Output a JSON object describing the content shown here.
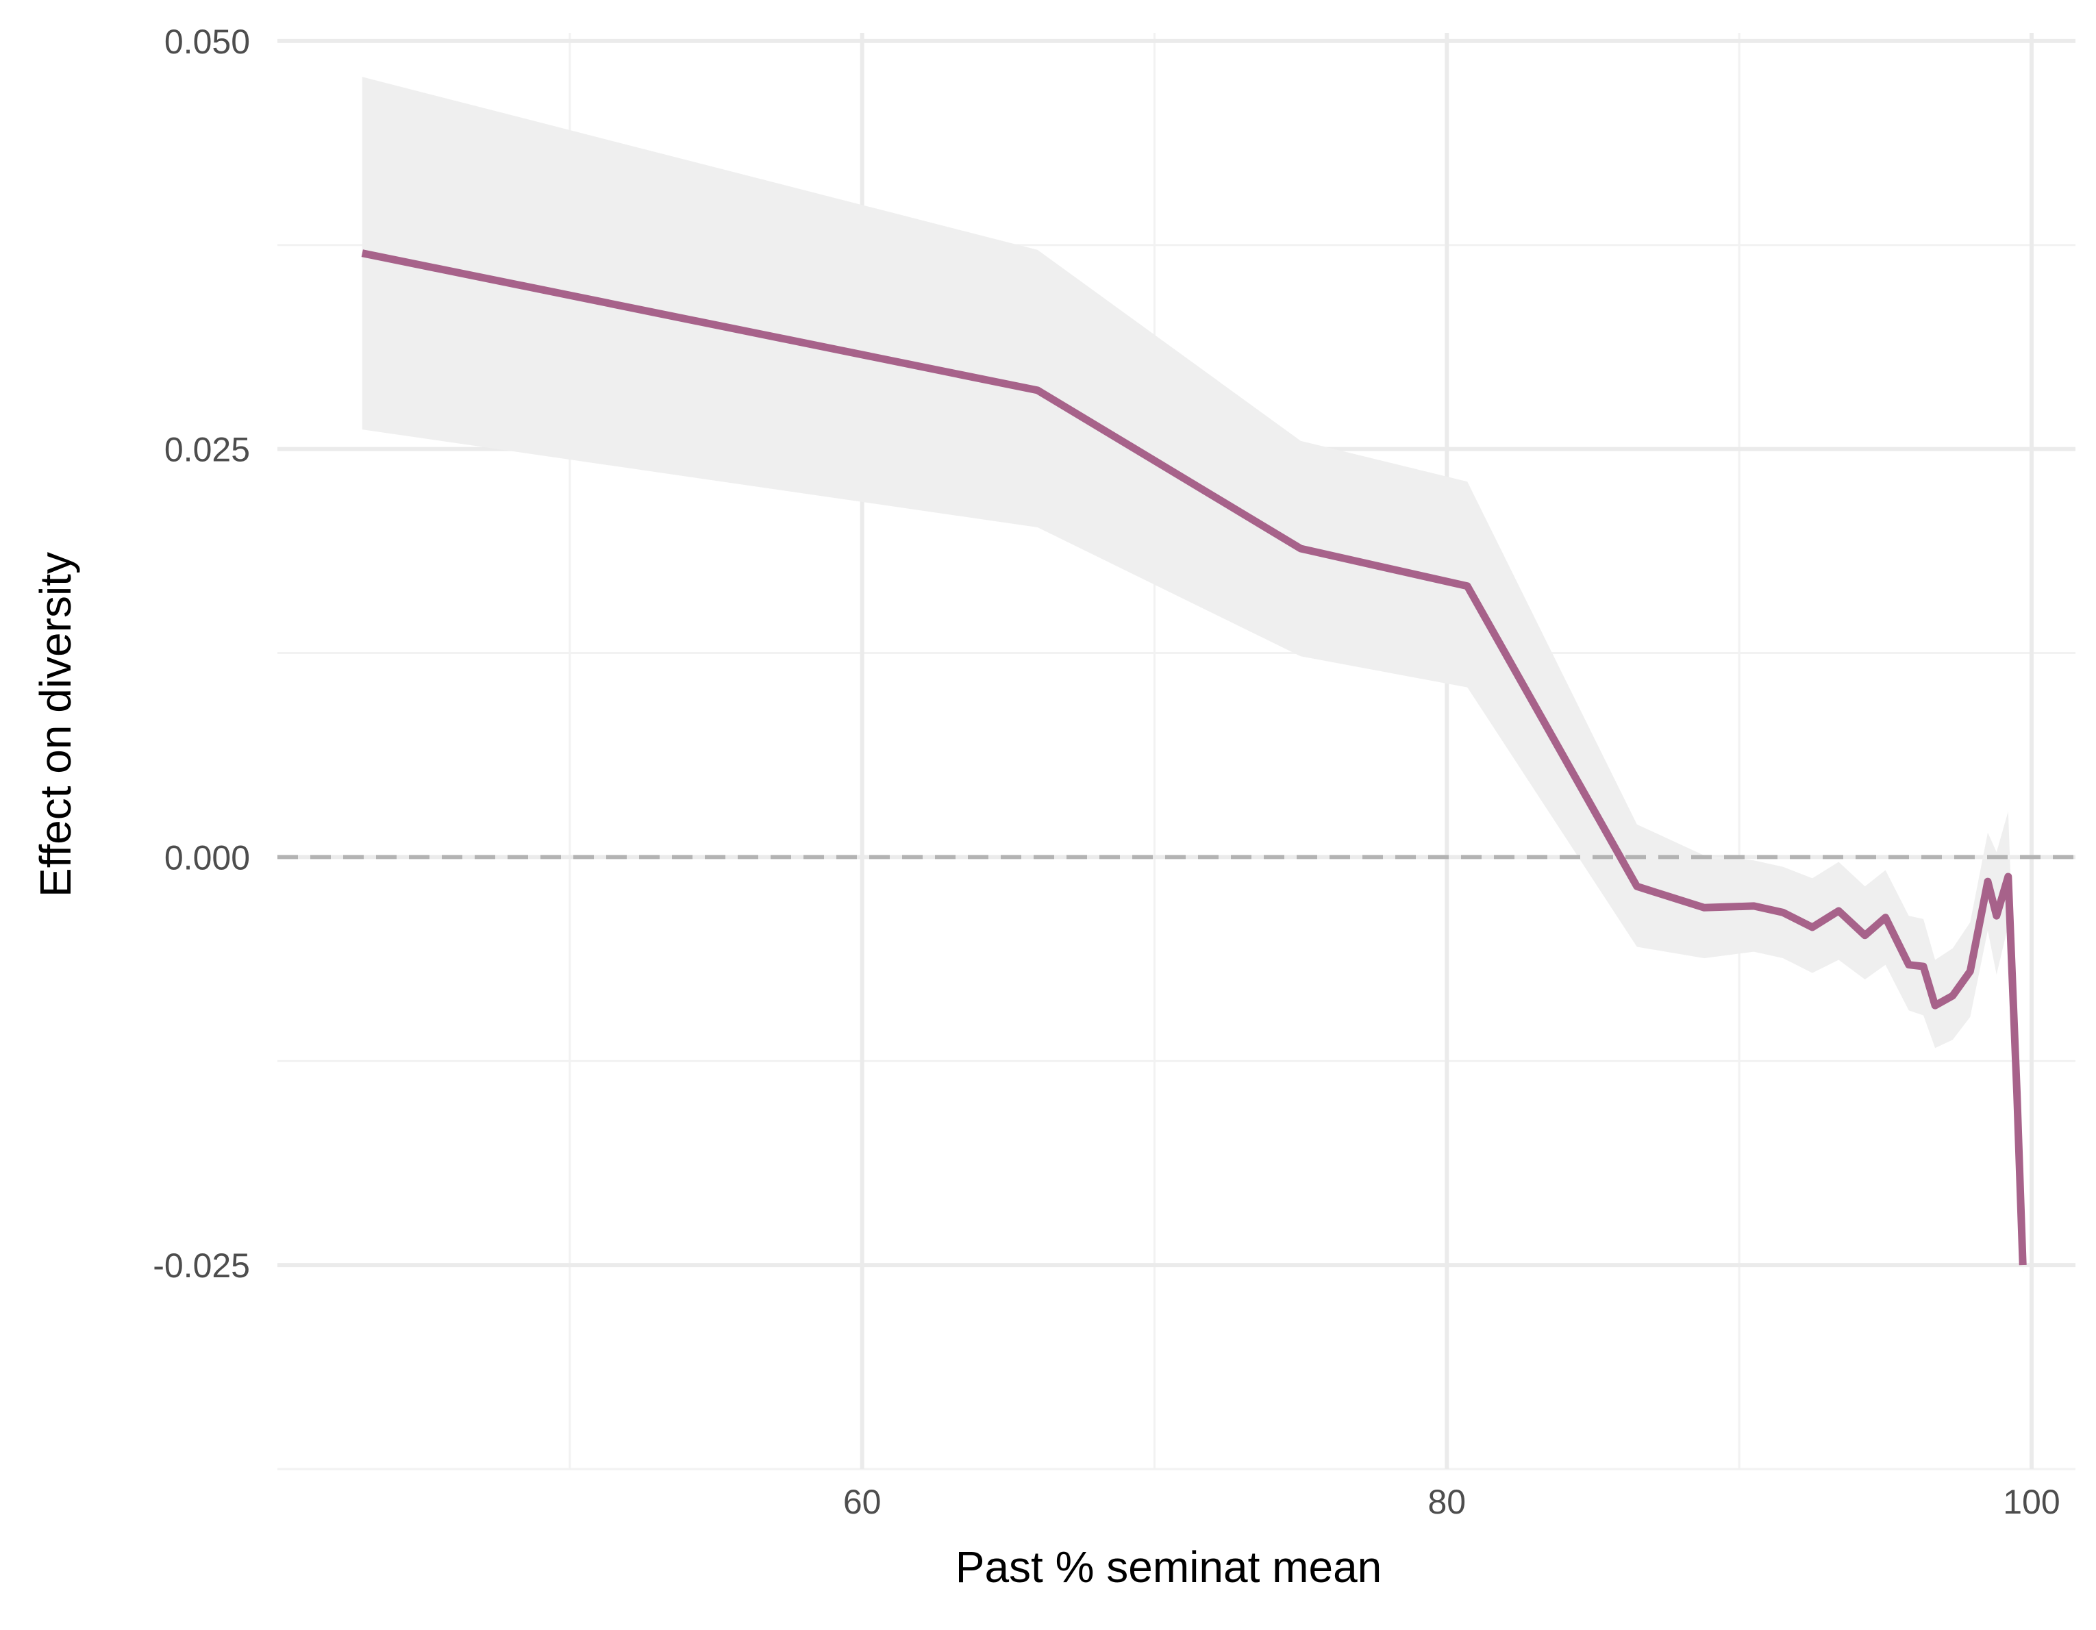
{
  "chart_data": {
    "type": "line",
    "title": "",
    "xlabel": "Past % seminat mean",
    "ylabel": "Effect on diversity",
    "xlim": [
      40,
      101.5
    ],
    "ylim": [
      -0.0375,
      0.0505
    ],
    "x_ticks": [
      60,
      80,
      100
    ],
    "x_tick_labels": [
      "60",
      "80",
      "100"
    ],
    "x_minor_ticks": [
      50,
      70,
      90
    ],
    "y_ticks": [
      0.05,
      0.025,
      0.0,
      -0.025
    ],
    "y_tick_labels": [
      "0.050",
      "0.025",
      "0.000",
      "-0.025"
    ],
    "y_minor_ticks": [
      0.0375,
      0.0125,
      -0.0125,
      -0.0375
    ],
    "grid": true,
    "reference_line": {
      "y": 0.0,
      "style": "dashed",
      "color": "#b3b3b3"
    },
    "colors": {
      "line": "#a7628a",
      "ribbon": "#efefef",
      "grid_major": "#ebebeb",
      "grid_minor": "#f2f2f2"
    },
    "series": [
      {
        "x": [
          42.9,
          66.0,
          75.0,
          80.7,
          86.5,
          88.8,
          90.5,
          91.5,
          92.5,
          93.4,
          94.3,
          95.0,
          95.8,
          96.3,
          96.7,
          97.3,
          97.9,
          98.5,
          98.8,
          99.2,
          99.5,
          99.7
        ],
        "y": [
          0.037,
          0.0286,
          0.0189,
          0.0166,
          -0.0018,
          -0.0031,
          -0.003,
          -0.0034,
          -0.0043,
          -0.0033,
          -0.0048,
          -0.0037,
          -0.0066,
          -0.0067,
          -0.0091,
          -0.0085,
          -0.007,
          -0.0015,
          -0.0036,
          -0.0012,
          -0.0145,
          -0.025
        ],
        "lower": [
          0.0262,
          0.0202,
          0.0123,
          0.0104,
          -0.0055,
          -0.0062,
          -0.0058,
          -0.0062,
          -0.0071,
          -0.0063,
          -0.0075,
          -0.0066,
          -0.0094,
          -0.0097,
          -0.0117,
          -0.0112,
          -0.0098,
          -0.0045,
          -0.0072,
          -0.0042,
          -0.017,
          -0.0255
        ],
        "upper": [
          0.0478,
          0.0372,
          0.0255,
          0.023,
          0.002,
          0.0001,
          -0.0002,
          -0.0006,
          -0.0013,
          -0.0003,
          -0.0018,
          -0.0008,
          -0.0036,
          -0.0038,
          -0.0063,
          -0.0056,
          -0.004,
          0.0015,
          0.0003,
          0.0028,
          -0.012,
          -0.0245
        ]
      }
    ]
  }
}
